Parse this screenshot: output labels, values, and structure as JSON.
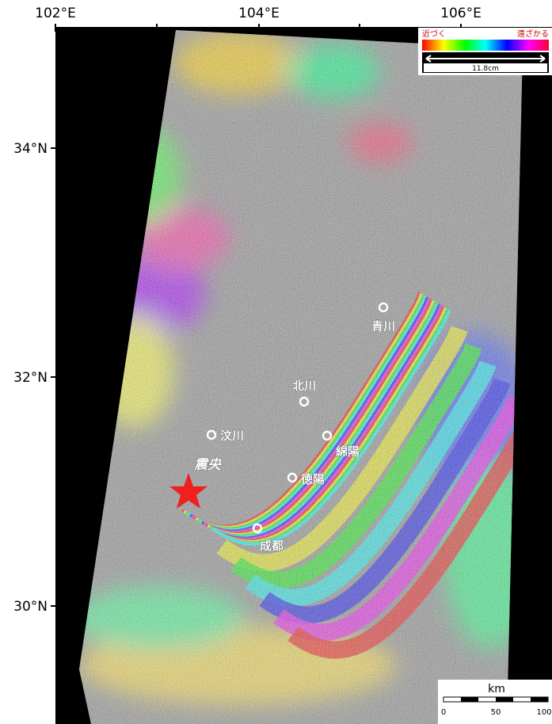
{
  "axes": {
    "longitude_labels": [
      "102°E",
      "104°E",
      "106°E"
    ],
    "latitude_labels": [
      "34°N",
      "32°N",
      "30°N"
    ]
  },
  "legend": {
    "near_label": "近づく",
    "far_label": "遠ざかる",
    "cycle_label": "11.8cm"
  },
  "places": [
    {
      "label": "青川"
    },
    {
      "label": "北川"
    },
    {
      "label": "汶川"
    },
    {
      "label": "綿陽"
    },
    {
      "label": "徳陽"
    },
    {
      "label": "成都"
    }
  ],
  "epicenter": {
    "label": "震央"
  },
  "scale_bar": {
    "unit": "km",
    "labels": [
      "0",
      "50",
      "100"
    ]
  }
}
